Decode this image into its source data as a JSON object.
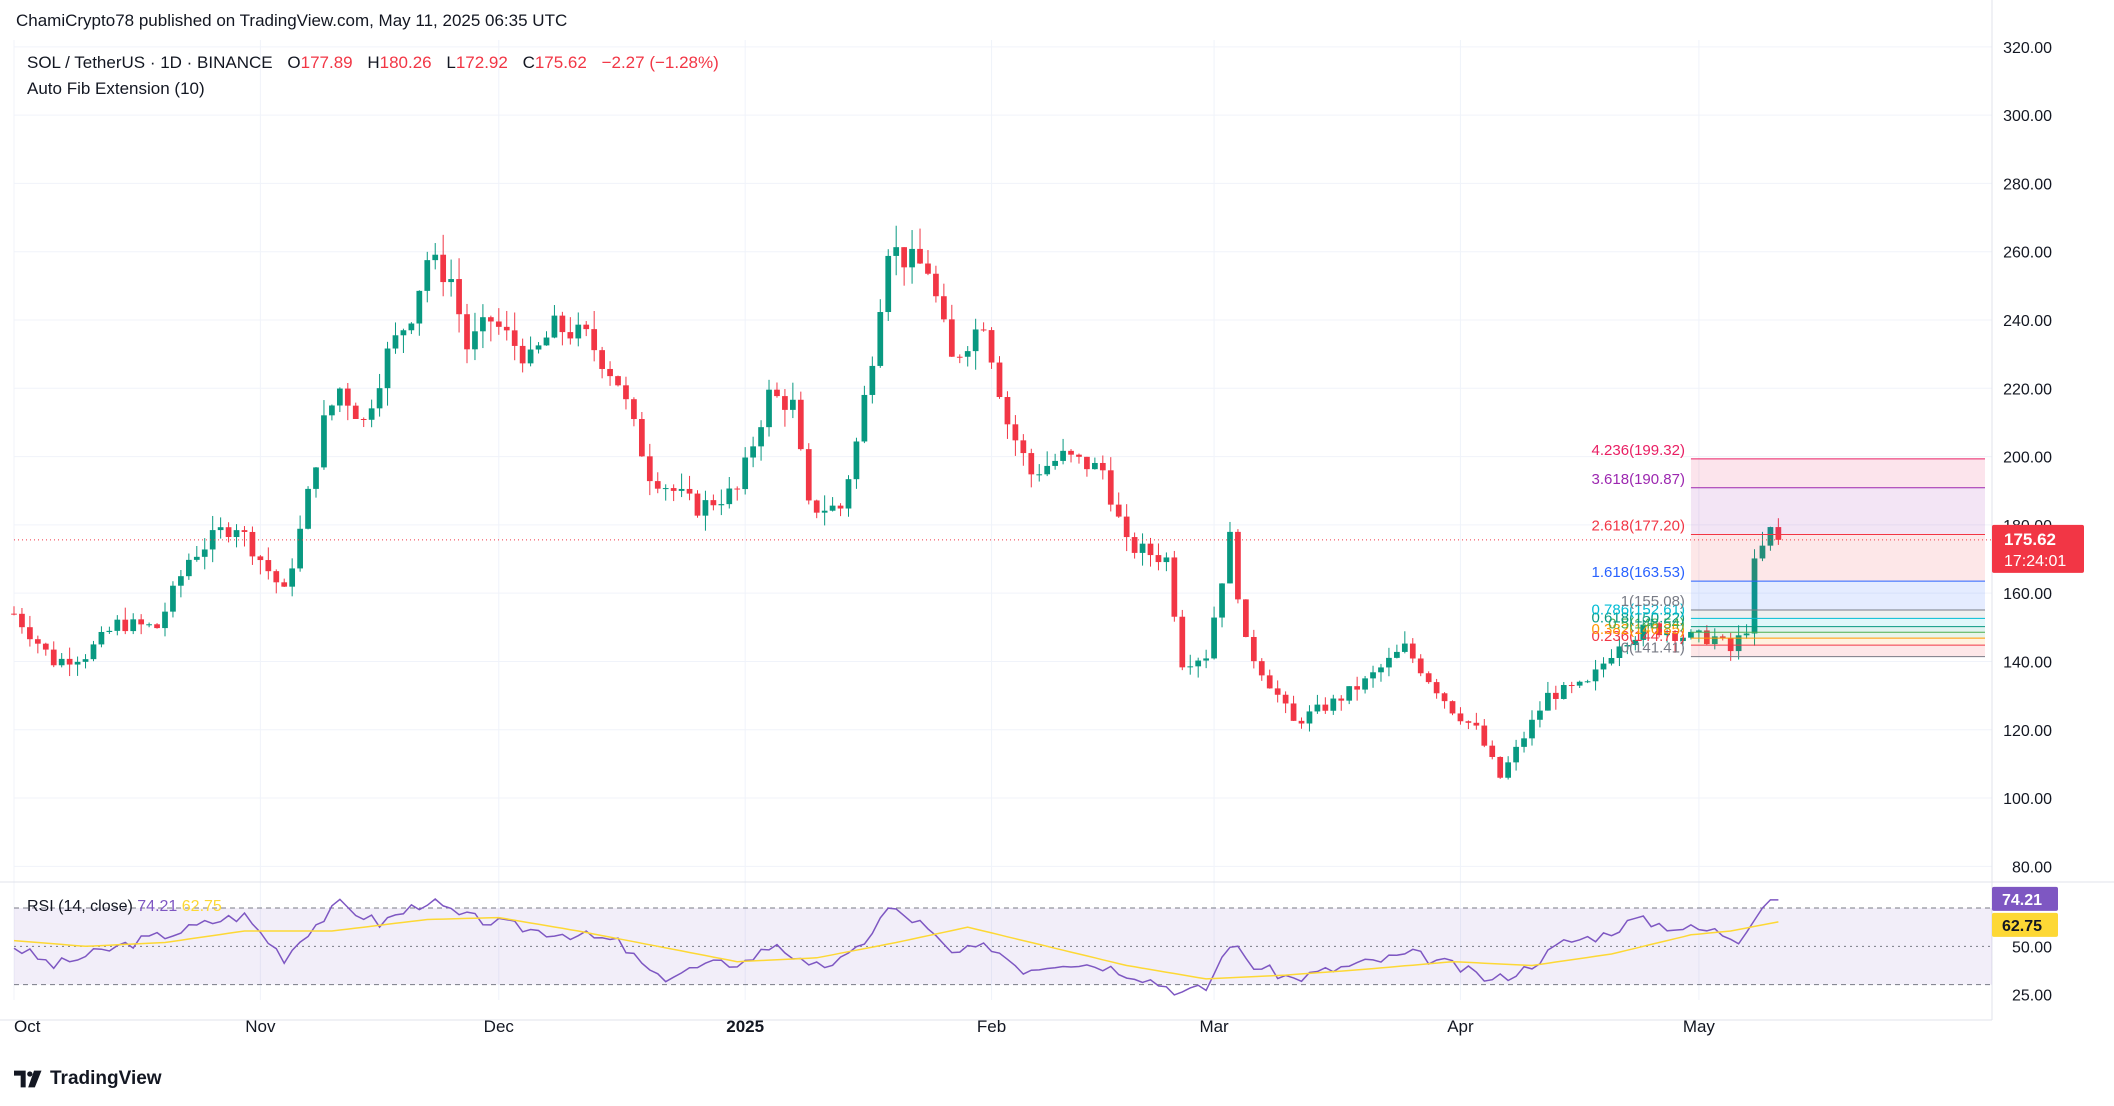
{
  "header": {
    "published": "ChamiCrypto78 published on TradingView.com, May 11, 2025 06:35 UTC",
    "symbol": "SOL / TetherUS · 1D · BINANCE",
    "open_label": "O",
    "open": "177.89",
    "high_label": "H",
    "high": "180.26",
    "low_label": "L",
    "low": "172.92",
    "close_label": "C",
    "close": "175.62",
    "change": "−2.27 (−1.28%)",
    "indicator": "Auto Fib Extension (10)"
  },
  "footer": {
    "brand": "TradingView"
  },
  "rsi_legend": {
    "label": "RSI (14, close)",
    "rsi": "74.21",
    "ma": "62.75"
  },
  "price_badge": {
    "price": "175.62",
    "countdown": "17:24:01"
  },
  "colors": {
    "up": "#089981",
    "down": "#f23645",
    "rsi": "#7e57c2",
    "rsi_ma": "#fdd835",
    "grid": "#f0f3fa",
    "text": "#131722",
    "axis_text": "#131722"
  },
  "chart_data": [
    {
      "type": "candlestick",
      "title": "SOL / TetherUS · 1D · BINANCE",
      "y_ticks": [
        80,
        100,
        120,
        140,
        160,
        180,
        200,
        220,
        240,
        260,
        280,
        300,
        320
      ],
      "y_tick_labels": [
        "80.00",
        "100.00",
        "120.00",
        "140.00",
        "160.00",
        "180.00",
        "200.00",
        "220.00",
        "240.00",
        "260.00",
        "280.00",
        "300.00",
        "320.00"
      ],
      "ylim": [
        76,
        322
      ],
      "x_start": "2024-10-01",
      "x_end": "2025-06-06",
      "x_ticks": [
        "2024-10-01",
        "2024-11-01",
        "2024-12-01",
        "2025-01-01",
        "2025-02-01",
        "2025-03-01",
        "2025-04-01",
        "2025-05-01"
      ],
      "x_tick_labels": [
        "Oct",
        "Nov",
        "Dec",
        "2025",
        "Feb",
        "Mar",
        "Apr",
        "May"
      ],
      "current_price": 175.62,
      "anchors": [
        [
          "2024-10-01",
          154
        ],
        [
          "2024-10-06",
          140
        ],
        [
          "2024-10-10",
          142
        ],
        [
          "2024-10-14",
          151
        ],
        [
          "2024-10-19",
          150
        ],
        [
          "2024-10-23",
          170
        ],
        [
          "2024-10-27",
          178
        ],
        [
          "2024-10-29",
          180
        ],
        [
          "2024-11-04",
          160
        ],
        [
          "2024-11-06",
          178
        ],
        [
          "2024-11-09",
          210
        ],
        [
          "2024-11-11",
          220
        ],
        [
          "2024-11-14",
          210
        ],
        [
          "2024-11-17",
          230
        ],
        [
          "2024-11-20",
          242
        ],
        [
          "2024-11-22",
          258
        ],
        [
          "2024-11-25",
          252
        ],
        [
          "2024-11-27",
          232
        ],
        [
          "2024-11-30",
          240
        ],
        [
          "2024-12-05",
          228
        ],
        [
          "2024-12-08",
          238
        ],
        [
          "2024-12-12",
          235
        ],
        [
          "2024-12-16",
          222
        ],
        [
          "2024-12-20",
          195
        ],
        [
          "2024-12-26",
          185
        ],
        [
          "2024-12-31",
          190
        ],
        [
          "2025-01-04",
          218
        ],
        [
          "2025-01-07",
          215
        ],
        [
          "2025-01-09",
          185
        ],
        [
          "2025-01-13",
          185
        ],
        [
          "2025-01-15",
          204
        ],
        [
          "2025-01-17",
          230
        ],
        [
          "2025-01-19",
          262
        ],
        [
          "2025-01-21",
          258
        ],
        [
          "2025-01-24",
          255
        ],
        [
          "2025-01-27",
          228
        ],
        [
          "2025-01-31",
          240
        ],
        [
          "2025-02-03",
          210
        ],
        [
          "2025-02-06",
          195
        ],
        [
          "2025-02-10",
          200
        ],
        [
          "2025-02-15",
          196
        ],
        [
          "2025-02-18",
          174
        ],
        [
          "2025-02-23",
          170
        ],
        [
          "2025-02-25",
          140
        ],
        [
          "2025-02-28",
          142
        ],
        [
          "2025-03-03",
          176
        ],
        [
          "2025-03-05",
          145
        ],
        [
          "2025-03-09",
          130
        ],
        [
          "2025-03-11",
          122
        ],
        [
          "2025-03-16",
          128
        ],
        [
          "2025-03-20",
          134
        ],
        [
          "2025-03-25",
          144
        ],
        [
          "2025-03-28",
          135
        ],
        [
          "2025-03-31",
          126
        ],
        [
          "2025-04-03",
          120
        ],
        [
          "2025-04-06",
          106
        ],
        [
          "2025-04-09",
          118
        ],
        [
          "2025-04-12",
          130
        ],
        [
          "2025-04-17",
          133
        ],
        [
          "2025-04-21",
          146
        ],
        [
          "2025-04-25",
          150
        ],
        [
          "2025-04-30",
          147
        ],
        [
          "2025-05-03",
          147
        ],
        [
          "2025-05-05",
          143
        ],
        [
          "2025-05-07",
          150
        ],
        [
          "2025-05-08",
          168
        ],
        [
          "2025-05-10",
          178
        ],
        [
          "2025-05-11",
          175.62
        ]
      ]
    },
    {
      "type": "fib_extension",
      "levels": [
        {
          "ratio": "0",
          "price": 141.41,
          "label": "0(141.41)"
        },
        {
          "ratio": "0.236",
          "price": 144.77,
          "label": "0.236(144.77)"
        },
        {
          "ratio": "0.382",
          "price": 146.85,
          "label": "0.382(146.85)"
        },
        {
          "ratio": "0.5",
          "price": 148.54,
          "label": "0.5(148.54)"
        },
        {
          "ratio": "0.618",
          "price": 150.22,
          "label": "0.618(150.22)"
        },
        {
          "ratio": "0.786",
          "price": 152.61,
          "label": "0.786(152.61)"
        },
        {
          "ratio": "1",
          "price": 155.08,
          "label": "1(155.08)"
        },
        {
          "ratio": "1.618",
          "price": 163.53,
          "label": "1.618(163.53)"
        },
        {
          "ratio": "2.618",
          "price": 177.2,
          "label": "2.618(177.20)"
        },
        {
          "ratio": "3.618",
          "price": 190.87,
          "label": "3.618(190.87)"
        },
        {
          "ratio": "4.236",
          "price": 199.32,
          "label": "4.236(199.32)"
        }
      ],
      "level_colors": [
        "#787b86",
        "#f23645",
        "#ff9800",
        "#4caf50",
        "#089981",
        "#00bcd4",
        "#787b86",
        "#2962ff",
        "#f23645",
        "#9c27b0",
        "#e91e63"
      ],
      "start": "2025-04-30",
      "end": "2025-06-06"
    },
    {
      "type": "line",
      "title": "RSI (14, close)",
      "series": [
        {
          "name": "RSI"
        },
        {
          "name": "RSI-based MA"
        }
      ],
      "y_ticks": [
        25,
        50
      ],
      "y_tick_labels": [
        "25.00",
        "50.00"
      ],
      "bands": [
        30,
        50,
        70
      ],
      "ylim": [
        22,
        82
      ],
      "last_rsi": 74.21,
      "last_ma": 62.75,
      "rsi_anchors": [
        [
          "2024-10-01",
          50
        ],
        [
          "2024-10-06",
          40
        ],
        [
          "2024-10-11",
          46
        ],
        [
          "2024-10-16",
          52
        ],
        [
          "2024-10-22",
          58
        ],
        [
          "2024-10-27",
          64
        ],
        [
          "2024-10-30",
          66
        ],
        [
          "2024-11-04",
          44
        ],
        [
          "2024-11-07",
          58
        ],
        [
          "2024-11-11",
          72
        ],
        [
          "2024-11-16",
          62
        ],
        [
          "2024-11-22",
          74
        ],
        [
          "2024-11-26",
          66
        ],
        [
          "2024-12-01",
          62
        ],
        [
          "2024-12-06",
          58
        ],
        [
          "2024-12-11",
          56
        ],
        [
          "2024-12-16",
          52
        ],
        [
          "2024-12-21",
          33
        ],
        [
          "2024-12-27",
          40
        ],
        [
          "2025-01-01",
          42
        ],
        [
          "2025-01-05",
          52
        ],
        [
          "2025-01-09",
          38
        ],
        [
          "2025-01-14",
          44
        ],
        [
          "2025-01-17",
          58
        ],
        [
          "2025-01-19",
          70
        ],
        [
          "2025-01-23",
          62
        ],
        [
          "2025-01-27",
          46
        ],
        [
          "2025-02-01",
          50
        ],
        [
          "2025-02-05",
          38
        ],
        [
          "2025-02-10",
          42
        ],
        [
          "2025-02-15",
          40
        ],
        [
          "2025-02-20",
          34
        ],
        [
          "2025-02-25",
          26
        ],
        [
          "2025-02-28",
          28
        ],
        [
          "2025-03-03",
          52
        ],
        [
          "2025-03-06",
          40
        ],
        [
          "2025-03-11",
          33
        ],
        [
          "2025-03-16",
          38
        ],
        [
          "2025-03-21",
          42
        ],
        [
          "2025-03-26",
          46
        ],
        [
          "2025-03-31",
          40
        ],
        [
          "2025-04-05",
          32
        ],
        [
          "2025-04-09",
          38
        ],
        [
          "2025-04-14",
          52
        ],
        [
          "2025-04-19",
          56
        ],
        [
          "2025-04-23",
          64
        ],
        [
          "2025-04-28",
          60
        ],
        [
          "2025-05-03",
          58
        ],
        [
          "2025-05-06",
          54
        ],
        [
          "2025-05-08",
          66
        ],
        [
          "2025-05-10",
          76
        ],
        [
          "2025-05-11",
          74.21
        ]
      ],
      "ma_anchors": [
        [
          "2024-10-01",
          53
        ],
        [
          "2024-10-10",
          50
        ],
        [
          "2024-10-20",
          52
        ],
        [
          "2024-10-30",
          58
        ],
        [
          "2024-11-10",
          58
        ],
        [
          "2024-11-22",
          64
        ],
        [
          "2024-12-01",
          65
        ],
        [
          "2024-12-11",
          58
        ],
        [
          "2024-12-21",
          50
        ],
        [
          "2024-12-31",
          42
        ],
        [
          "2025-01-10",
          44
        ],
        [
          "2025-01-20",
          52
        ],
        [
          "2025-01-29",
          60
        ],
        [
          "2025-02-08",
          50
        ],
        [
          "2025-02-18",
          40
        ],
        [
          "2025-02-28",
          33
        ],
        [
          "2025-03-10",
          35
        ],
        [
          "2025-03-20",
          38
        ],
        [
          "2025-03-31",
          42
        ],
        [
          "2025-04-10",
          40
        ],
        [
          "2025-04-20",
          46
        ],
        [
          "2025-04-30",
          56
        ],
        [
          "2025-05-05",
          58
        ],
        [
          "2025-05-11",
          62.75
        ]
      ]
    }
  ]
}
